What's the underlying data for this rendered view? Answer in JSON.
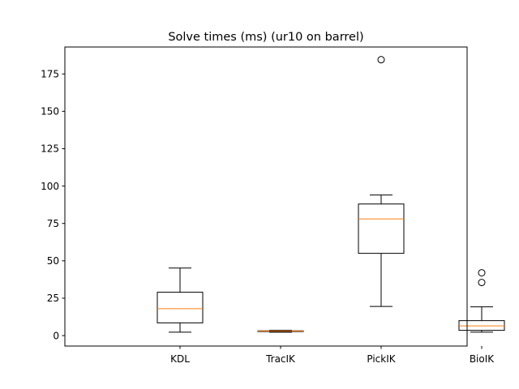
{
  "chart_data": {
    "type": "box",
    "title": "Solve times (ms) (ur10 on barrel)",
    "xlabel": "",
    "ylabel": "",
    "ylim": [
      -7,
      193
    ],
    "yticks": [
      0,
      25,
      50,
      75,
      100,
      125,
      150,
      175
    ],
    "grid": false,
    "colors": {
      "box": "#000000",
      "median": "#ff7f0e",
      "background": "#ffffff"
    },
    "categories": [
      "KDL",
      "TracIK",
      "PickIK",
      "BioIK"
    ],
    "boxes": [
      {
        "label": "KDL",
        "whislo": 2.3,
        "q1": 8.5,
        "med": 18.0,
        "q3": 29.0,
        "whishi": 45.2,
        "fliers": []
      },
      {
        "label": "TracIK",
        "whislo": 2.3,
        "q1": 2.7,
        "med": 3.0,
        "q3": 3.2,
        "whishi": 3.5,
        "fliers": []
      },
      {
        "label": "PickIK",
        "whislo": 19.5,
        "q1": 55.0,
        "med": 78.0,
        "q3": 88.0,
        "whishi": 94.0,
        "fliers": [
          184.5
        ]
      },
      {
        "label": "BioIK",
        "whislo": 2.3,
        "q1": 3.5,
        "med": 6.5,
        "q3": 10.0,
        "whishi": 19.2,
        "fliers": [
          35.5,
          42.0
        ]
      }
    ]
  }
}
